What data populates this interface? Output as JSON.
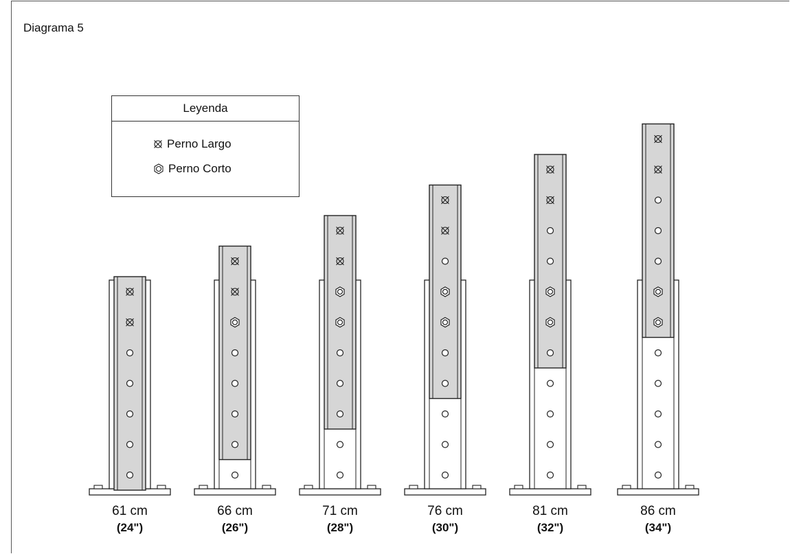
{
  "title": "Diagrama 5",
  "legend": {
    "title": "Leyenda",
    "items": [
      {
        "icon": "long-bolt-icon",
        "label": "Perno Largo"
      },
      {
        "icon": "short-bolt-icon",
        "label": "Perno Corto"
      }
    ]
  },
  "columns": [
    {
      "cm": "61 cm",
      "in": "(24\")",
      "inner_holes": [
        "long",
        "long",
        "open",
        "open",
        "open",
        "open",
        "open"
      ],
      "outer_holes": []
    },
    {
      "cm": "66 cm",
      "in": "(26\")",
      "inner_holes": [
        "long",
        "long",
        "short",
        "open",
        "open",
        "open",
        "open"
      ],
      "outer_holes": [
        "open"
      ]
    },
    {
      "cm": "71 cm",
      "in": "(28\")",
      "inner_holes": [
        "long",
        "long",
        "short",
        "short",
        "open",
        "open",
        "open"
      ],
      "outer_holes": [
        "open",
        "open"
      ]
    },
    {
      "cm": "76 cm",
      "in": "(30\")",
      "inner_holes": [
        "long",
        "long",
        "open",
        "short",
        "short",
        "open",
        "open"
      ],
      "outer_holes": [
        "open",
        "open",
        "open"
      ]
    },
    {
      "cm": "81 cm",
      "in": "(32\")",
      "inner_holes": [
        "long",
        "long",
        "open",
        "open",
        "short",
        "short",
        "open"
      ],
      "outer_holes": [
        "open",
        "open",
        "open",
        "open"
      ]
    },
    {
      "cm": "86 cm",
      "in": "(34\")",
      "inner_holes": [
        "long",
        "long",
        "open",
        "open",
        "open",
        "short",
        "short"
      ],
      "outer_holes": [
        "open",
        "open",
        "open",
        "open",
        "open"
      ]
    }
  ],
  "colors": {
    "inner_fill": "#d6d6d6",
    "outline": "#222222",
    "background": "#ffffff"
  }
}
